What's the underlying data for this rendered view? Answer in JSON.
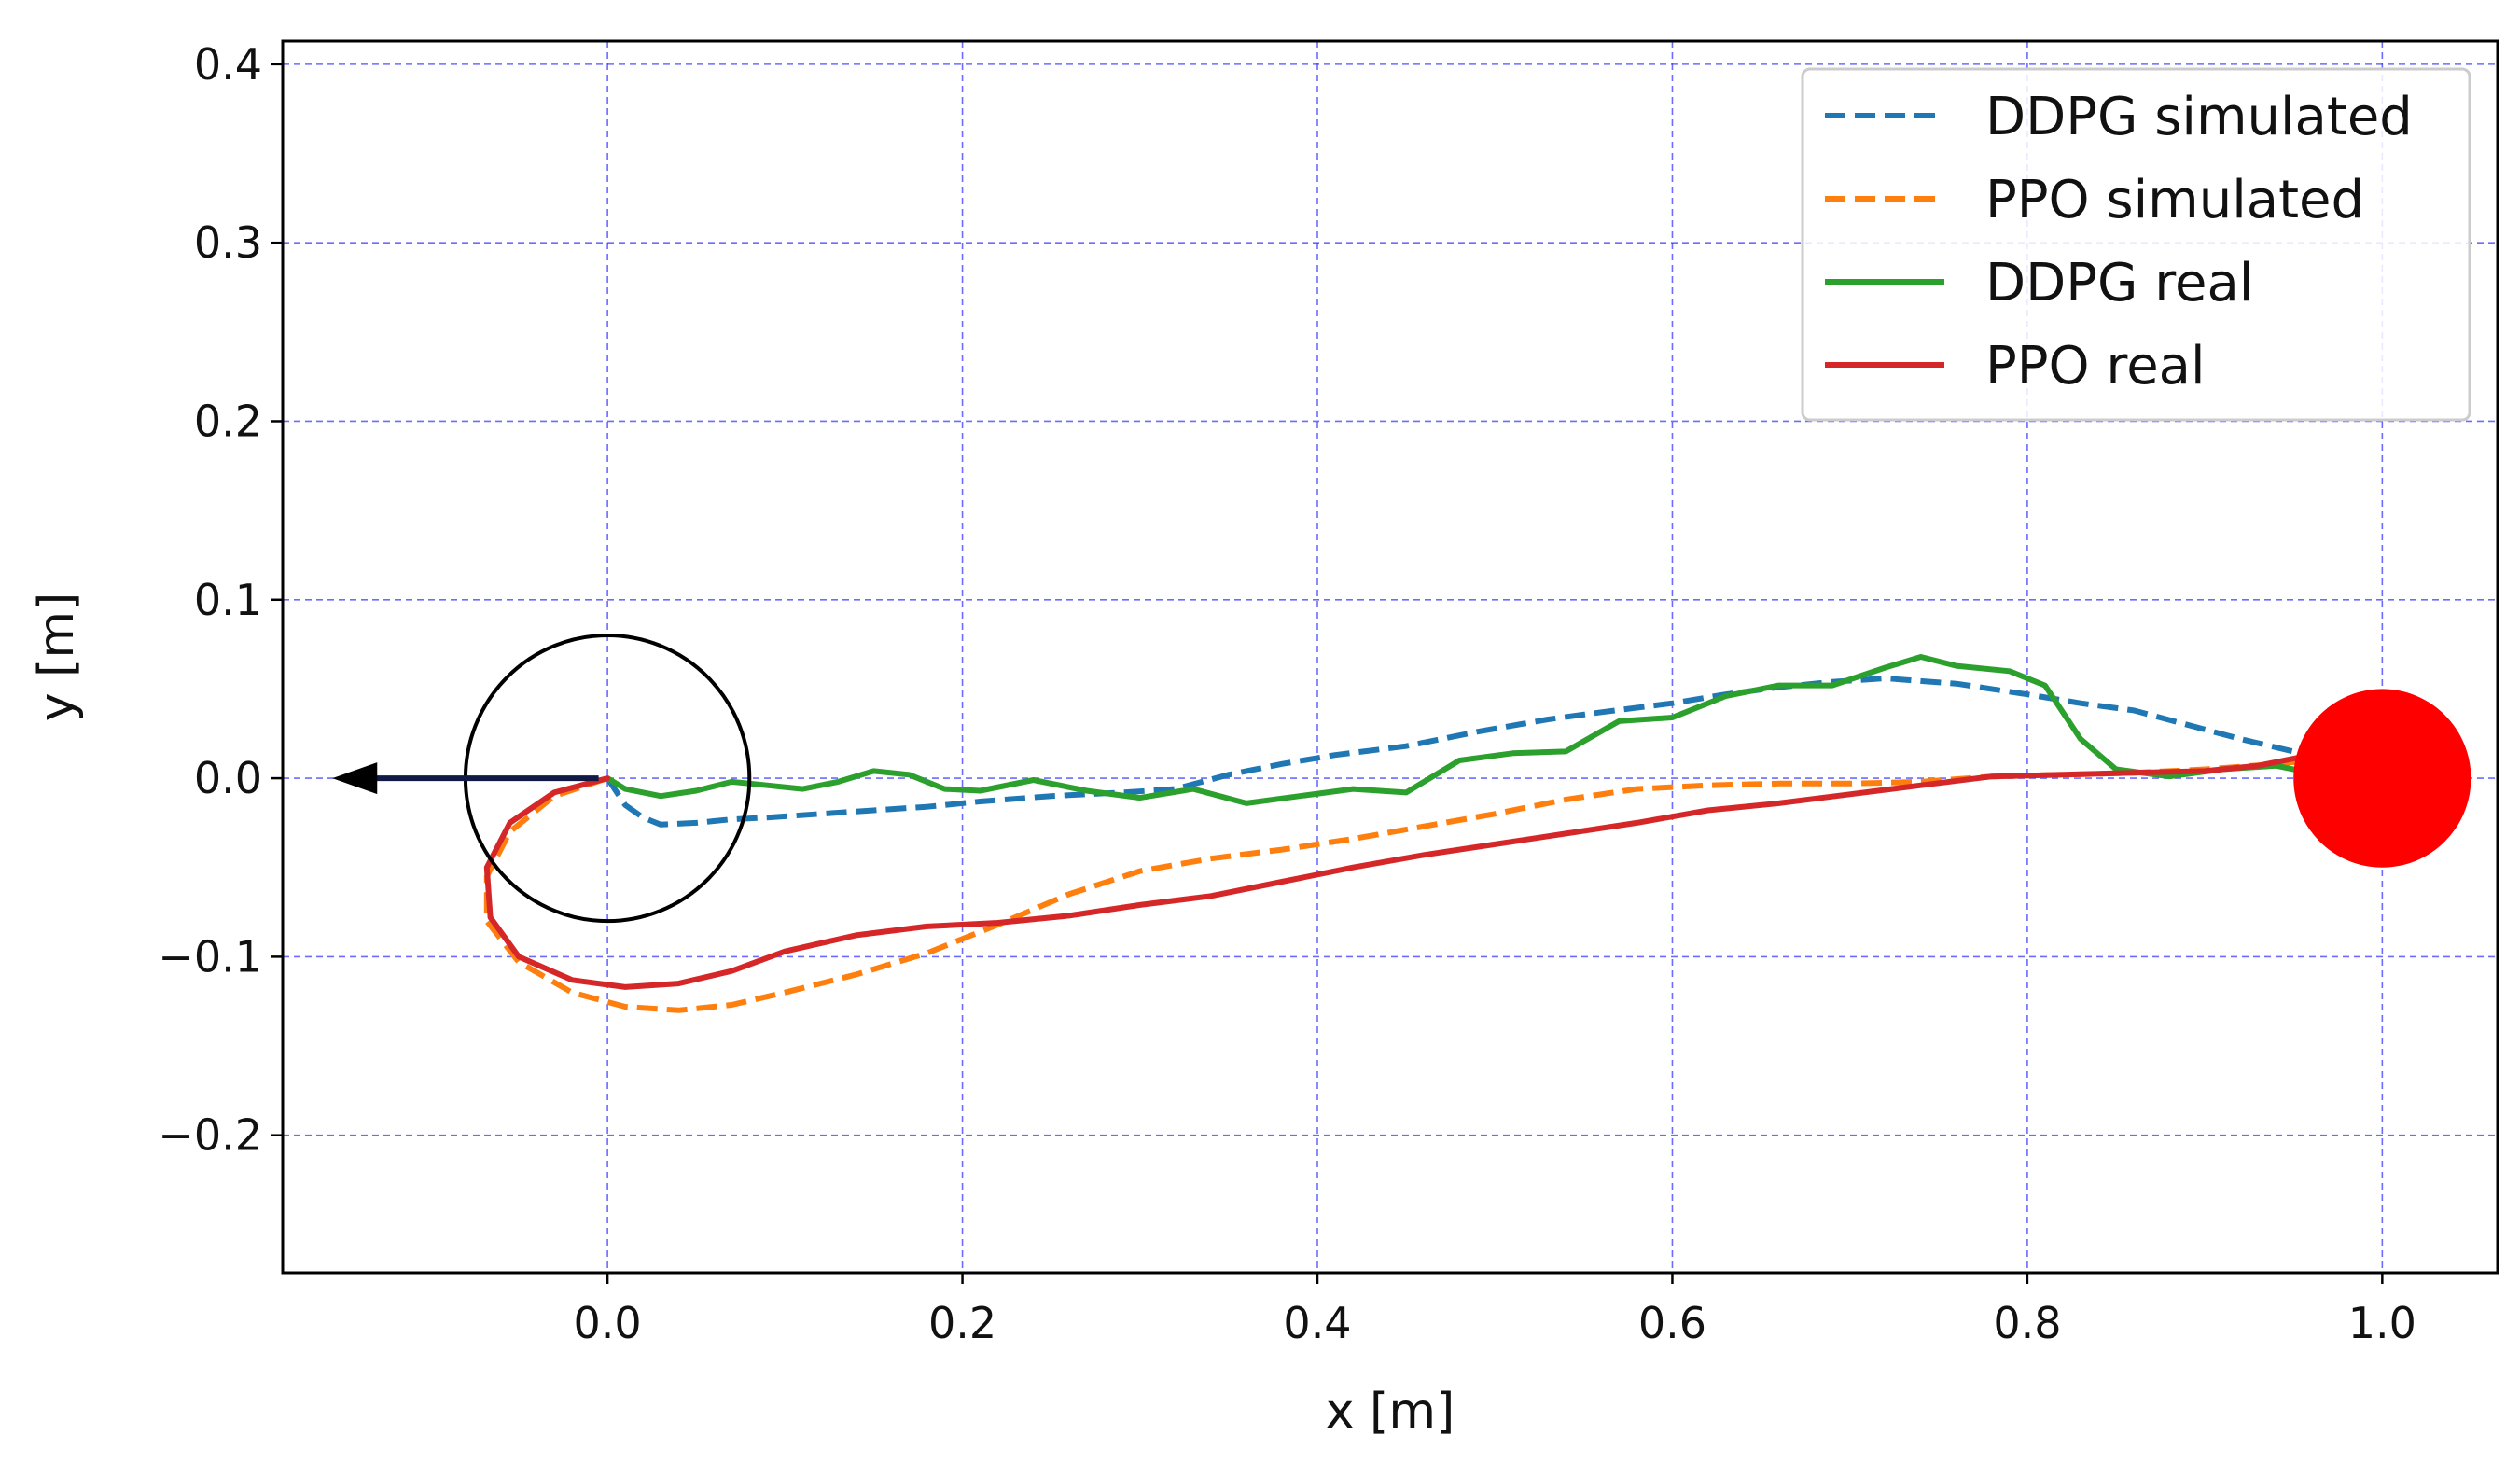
{
  "chart_data": {
    "type": "line",
    "title": "",
    "xlabel": "x [m]",
    "ylabel": "y [m]",
    "xlim": [
      -0.183,
      1.065
    ],
    "ylim": [
      -0.277,
      0.413
    ],
    "xticks": [
      {
        "value": 0.0,
        "label": "0.0"
      },
      {
        "value": 0.2,
        "label": "0.2"
      },
      {
        "value": 0.4,
        "label": "0.4"
      },
      {
        "value": 0.6,
        "label": "0.6"
      },
      {
        "value": 0.8,
        "label": "0.8"
      },
      {
        "value": 1.0,
        "label": "1.0"
      }
    ],
    "yticks": [
      {
        "value": 0.4,
        "label": "0.4"
      },
      {
        "value": 0.3,
        "label": "0.3"
      },
      {
        "value": 0.2,
        "label": "0.2"
      },
      {
        "value": 0.1,
        "label": "0.1"
      },
      {
        "value": 0.0,
        "label": "0.0"
      },
      {
        "value": -0.1,
        "label": "−0.1"
      },
      {
        "value": -0.2,
        "label": "−0.2"
      }
    ],
    "grid": true,
    "legend_position": "top-right",
    "series": [
      {
        "name": "DDPG simulated",
        "color": "#1f77b4",
        "style": "dashed",
        "points": [
          [
            0,
            0
          ],
          [
            0.01,
            -0.015
          ],
          [
            0.02,
            -0.022
          ],
          [
            0.03,
            -0.026
          ],
          [
            0.05,
            -0.025
          ],
          [
            0.07,
            -0.023
          ],
          [
            0.09,
            -0.022
          ],
          [
            0.12,
            -0.02
          ],
          [
            0.15,
            -0.018
          ],
          [
            0.18,
            -0.016
          ],
          [
            0.21,
            -0.013
          ],
          [
            0.25,
            -0.01
          ],
          [
            0.29,
            -0.008
          ],
          [
            0.32,
            -0.006
          ],
          [
            0.35,
            0.002
          ],
          [
            0.38,
            0.008
          ],
          [
            0.41,
            0.013
          ],
          [
            0.45,
            0.018
          ],
          [
            0.49,
            0.026
          ],
          [
            0.53,
            0.033
          ],
          [
            0.56,
            0.037
          ],
          [
            0.6,
            0.042
          ],
          [
            0.63,
            0.047
          ],
          [
            0.66,
            0.051
          ],
          [
            0.69,
            0.054
          ],
          [
            0.72,
            0.056
          ],
          [
            0.76,
            0.053
          ],
          [
            0.8,
            0.047
          ],
          [
            0.83,
            0.042
          ],
          [
            0.86,
            0.038
          ],
          [
            0.89,
            0.03
          ],
          [
            0.92,
            0.022
          ],
          [
            0.95,
            0.015
          ],
          [
            0.97,
            0.012
          ]
        ]
      },
      {
        "name": "PPO simulated",
        "color": "#ff7f0e",
        "style": "dashed",
        "points": [
          [
            0,
            0
          ],
          [
            -0.03,
            -0.01
          ],
          [
            -0.055,
            -0.03
          ],
          [
            -0.068,
            -0.055
          ],
          [
            -0.068,
            -0.08
          ],
          [
            -0.05,
            -0.103
          ],
          [
            -0.02,
            -0.12
          ],
          [
            0.01,
            -0.128
          ],
          [
            0.04,
            -0.13
          ],
          [
            0.07,
            -0.127
          ],
          [
            0.1,
            -0.12
          ],
          [
            0.14,
            -0.11
          ],
          [
            0.18,
            -0.098
          ],
          [
            0.22,
            -0.082
          ],
          [
            0.26,
            -0.065
          ],
          [
            0.3,
            -0.052
          ],
          [
            0.34,
            -0.045
          ],
          [
            0.38,
            -0.04
          ],
          [
            0.42,
            -0.034
          ],
          [
            0.46,
            -0.027
          ],
          [
            0.5,
            -0.02
          ],
          [
            0.54,
            -0.012
          ],
          [
            0.58,
            -0.006
          ],
          [
            0.62,
            -0.004
          ],
          [
            0.66,
            -0.003
          ],
          [
            0.7,
            -0.003
          ],
          [
            0.74,
            -0.002
          ],
          [
            0.78,
            0.001
          ],
          [
            0.82,
            0.002
          ],
          [
            0.86,
            0.003
          ],
          [
            0.9,
            0.005
          ],
          [
            0.94,
            0.008
          ],
          [
            0.96,
            0.01
          ]
        ]
      },
      {
        "name": "DDPG real",
        "color": "#2ca02c",
        "style": "solid",
        "points": [
          [
            0,
            0
          ],
          [
            0.01,
            -0.006
          ],
          [
            0.03,
            -0.01
          ],
          [
            0.05,
            -0.007
          ],
          [
            0.07,
            -0.002
          ],
          [
            0.09,
            -0.004
          ],
          [
            0.11,
            -0.006
          ],
          [
            0.13,
            -0.002
          ],
          [
            0.15,
            0.004
          ],
          [
            0.17,
            0.002
          ],
          [
            0.19,
            -0.006
          ],
          [
            0.21,
            -0.007
          ],
          [
            0.24,
            -0.001
          ],
          [
            0.27,
            -0.007
          ],
          [
            0.3,
            -0.011
          ],
          [
            0.33,
            -0.006
          ],
          [
            0.36,
            -0.014
          ],
          [
            0.39,
            -0.01
          ],
          [
            0.42,
            -0.006
          ],
          [
            0.45,
            -0.008
          ],
          [
            0.48,
            0.01
          ],
          [
            0.51,
            0.014
          ],
          [
            0.54,
            0.015
          ],
          [
            0.57,
            0.032
          ],
          [
            0.6,
            0.034
          ],
          [
            0.63,
            0.046
          ],
          [
            0.66,
            0.052
          ],
          [
            0.69,
            0.052
          ],
          [
            0.72,
            0.062
          ],
          [
            0.74,
            0.068
          ],
          [
            0.76,
            0.063
          ],
          [
            0.79,
            0.06
          ],
          [
            0.81,
            0.052
          ],
          [
            0.83,
            0.022
          ],
          [
            0.85,
            0.005
          ],
          [
            0.88,
            0.001
          ],
          [
            0.91,
            0.005
          ],
          [
            0.94,
            0.007
          ],
          [
            0.97,
            0.001
          ]
        ]
      },
      {
        "name": "PPO real",
        "color": "#d62728",
        "style": "solid",
        "points": [
          [
            0,
            0
          ],
          [
            -0.03,
            -0.008
          ],
          [
            -0.055,
            -0.025
          ],
          [
            -0.068,
            -0.05
          ],
          [
            -0.066,
            -0.078
          ],
          [
            -0.05,
            -0.1
          ],
          [
            -0.02,
            -0.113
          ],
          [
            0.01,
            -0.117
          ],
          [
            0.04,
            -0.115
          ],
          [
            0.07,
            -0.108
          ],
          [
            0.1,
            -0.097
          ],
          [
            0.14,
            -0.088
          ],
          [
            0.18,
            -0.083
          ],
          [
            0.22,
            -0.081
          ],
          [
            0.26,
            -0.077
          ],
          [
            0.3,
            -0.071
          ],
          [
            0.34,
            -0.066
          ],
          [
            0.38,
            -0.058
          ],
          [
            0.42,
            -0.05
          ],
          [
            0.46,
            -0.043
          ],
          [
            0.5,
            -0.037
          ],
          [
            0.54,
            -0.031
          ],
          [
            0.58,
            -0.025
          ],
          [
            0.62,
            -0.018
          ],
          [
            0.66,
            -0.014
          ],
          [
            0.7,
            -0.009
          ],
          [
            0.74,
            -0.004
          ],
          [
            0.78,
            0.001
          ],
          [
            0.82,
            0.002
          ],
          [
            0.86,
            0.003
          ],
          [
            0.9,
            0.004
          ],
          [
            0.93,
            0.007
          ],
          [
            0.96,
            0.013
          ]
        ]
      }
    ],
    "annotations": {
      "start_circle": {
        "center": [
          0,
          0
        ],
        "radius": 0.08,
        "color": "#000000"
      },
      "heading_arrow": {
        "from": [
          -0.005,
          0
        ],
        "to": [
          -0.155,
          0
        ],
        "color": "#000000"
      },
      "goal_marker": {
        "center": [
          1.0,
          0
        ],
        "radius": 0.05,
        "color": "#ff0000"
      }
    }
  }
}
